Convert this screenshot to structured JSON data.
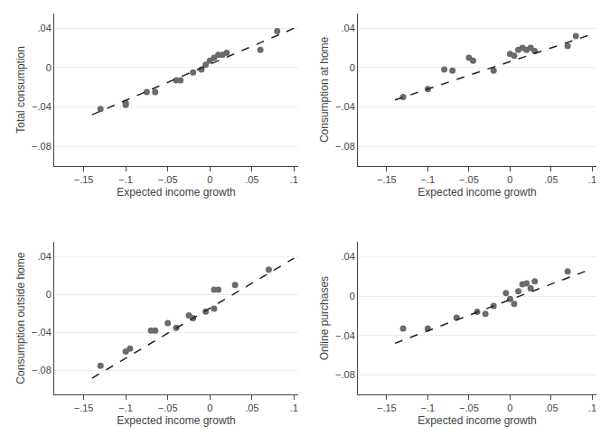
{
  "chart_data": [
    {
      "type": "scatter",
      "ylabel": "Total consumption",
      "xlabel": "Expected income growth",
      "series": [
        {
          "type": "scatter",
          "marker": "circle",
          "color": "#6b6b6b",
          "x": [
            -0.13,
            -0.1,
            -0.1,
            -0.075,
            -0.065,
            -0.04,
            -0.035,
            -0.02,
            -0.01,
            -0.005,
            0.0,
            0.005,
            0.01,
            0.015,
            0.02,
            0.06,
            0.08
          ],
          "values": [
            -0.042,
            -0.038,
            -0.036,
            -0.025,
            -0.025,
            -0.013,
            -0.013,
            -0.005,
            -0.002,
            0.003,
            0.007,
            0.01,
            0.013,
            0.013,
            0.015,
            0.018,
            0.037
          ]
        },
        {
          "type": "line",
          "line_style": "dashed",
          "color": "#222222",
          "x": [
            -0.14,
            0.1
          ],
          "values": [
            -0.048,
            0.04
          ]
        }
      ],
      "ylim": [
        -0.1,
        0.055
      ],
      "xlim": [
        -0.185,
        0.105
      ],
      "yticks": [
        {
          "value": 0.04,
          "label": ".04"
        },
        0,
        {
          "value": -0.04,
          "label": "−.04"
        },
        {
          "value": -0.08,
          "label": "−.08"
        }
      ],
      "xticks": [
        {
          "value": -0.15,
          "label": "−.15"
        },
        {
          "value": -0.1,
          "label": "−.1"
        },
        {
          "value": -0.05,
          "label": "−.05"
        },
        0,
        {
          "value": 0.05,
          "label": ".05"
        },
        {
          "value": 0.1,
          "label": ".1"
        }
      ],
      "grid": "y"
    },
    {
      "type": "scatter",
      "ylabel": "Consumption at home",
      "xlabel": "Expected income growth",
      "series": [
        {
          "type": "scatter",
          "marker": "circle",
          "color": "#6b6b6b",
          "x": [
            -0.13,
            -0.1,
            -0.08,
            -0.07,
            -0.05,
            -0.045,
            -0.02,
            0.0,
            0.005,
            0.01,
            0.015,
            0.02,
            0.025,
            0.03,
            0.07,
            0.08
          ],
          "values": [
            -0.03,
            -0.022,
            -0.002,
            -0.003,
            0.01,
            0.007,
            -0.003,
            0.014,
            0.012,
            0.018,
            0.02,
            0.018,
            0.02,
            0.017,
            0.022,
            0.032
          ]
        },
        {
          "type": "line",
          "line_style": "dashed",
          "color": "#222222",
          "x": [
            -0.14,
            0.1
          ],
          "values": [
            -0.033,
            0.034
          ]
        }
      ],
      "ylim": [
        -0.1,
        0.055
      ],
      "xlim": [
        -0.185,
        0.105
      ],
      "yticks": [
        {
          "value": 0.04,
          "label": ".04"
        },
        0,
        {
          "value": -0.04,
          "label": "−.04"
        },
        {
          "value": -0.08,
          "label": "−.08"
        }
      ],
      "xticks": [
        {
          "value": -0.15,
          "label": "−.15"
        },
        {
          "value": -0.1,
          "label": "−.1"
        },
        {
          "value": -0.05,
          "label": "−.05"
        },
        0,
        {
          "value": 0.05,
          "label": ".05"
        },
        {
          "value": 0.1,
          "label": ".1"
        }
      ],
      "grid": "y"
    },
    {
      "type": "scatter",
      "ylabel": "Consumption outside home",
      "xlabel": "Expected income growth",
      "series": [
        {
          "type": "scatter",
          "marker": "circle",
          "color": "#6b6b6b",
          "x": [
            -0.13,
            -0.1,
            -0.095,
            -0.07,
            -0.065,
            -0.05,
            -0.04,
            -0.025,
            -0.02,
            -0.005,
            0.005,
            0.005,
            0.01,
            0.03,
            0.07
          ],
          "values": [
            -0.075,
            -0.06,
            -0.057,
            -0.038,
            -0.038,
            -0.03,
            -0.035,
            -0.022,
            -0.025,
            -0.018,
            -0.015,
            0.005,
            0.005,
            0.01,
            0.026
          ]
        },
        {
          "type": "line",
          "line_style": "dashed",
          "color": "#222222",
          "x": [
            -0.14,
            0.1
          ],
          "values": [
            -0.088,
            0.038
          ]
        }
      ],
      "ylim": [
        -0.105,
        0.055
      ],
      "xlim": [
        -0.185,
        0.105
      ],
      "yticks": [
        {
          "value": 0.04,
          "label": ".04"
        },
        0,
        {
          "value": -0.04,
          "label": "−.04"
        },
        {
          "value": -0.08,
          "label": "−.08"
        }
      ],
      "xticks": [
        {
          "value": -0.15,
          "label": "−.15"
        },
        {
          "value": -0.1,
          "label": "−.1"
        },
        {
          "value": -0.05,
          "label": "−.05"
        },
        0,
        {
          "value": 0.05,
          "label": ".05"
        },
        {
          "value": 0.1,
          "label": ".1"
        }
      ],
      "grid": "y"
    },
    {
      "type": "scatter",
      "ylabel": "Online purchases",
      "xlabel": "Expected income growth",
      "series": [
        {
          "type": "scatter",
          "marker": "circle",
          "color": "#6b6b6b",
          "x": [
            -0.13,
            -0.1,
            -0.065,
            -0.04,
            -0.03,
            -0.02,
            -0.005,
            0.0,
            0.005,
            0.01,
            0.015,
            0.02,
            0.025,
            0.03,
            0.07
          ],
          "values": [
            -0.033,
            -0.033,
            -0.022,
            -0.016,
            -0.018,
            -0.01,
            0.003,
            -0.003,
            -0.008,
            0.005,
            0.012,
            0.013,
            0.008,
            0.015,
            0.025
          ]
        },
        {
          "type": "line",
          "line_style": "dashed",
          "color": "#222222",
          "x": [
            -0.14,
            0.1
          ],
          "values": [
            -0.048,
            0.028
          ]
        }
      ],
      "ylim": [
        -0.1,
        0.055
      ],
      "xlim": [
        -0.185,
        0.105
      ],
      "yticks": [
        {
          "value": 0.04,
          "label": ".04"
        },
        0,
        {
          "value": -0.04,
          "label": "−.04"
        },
        {
          "value": -0.08,
          "label": "−.08"
        }
      ],
      "xticks": [
        {
          "value": -0.15,
          "label": "−.15"
        },
        {
          "value": -0.1,
          "label": "−.1"
        },
        {
          "value": -0.05,
          "label": "−.05"
        },
        0,
        {
          "value": 0.05,
          "label": ".05"
        },
        {
          "value": 0.1,
          "label": ".1"
        }
      ],
      "grid": "y"
    }
  ]
}
